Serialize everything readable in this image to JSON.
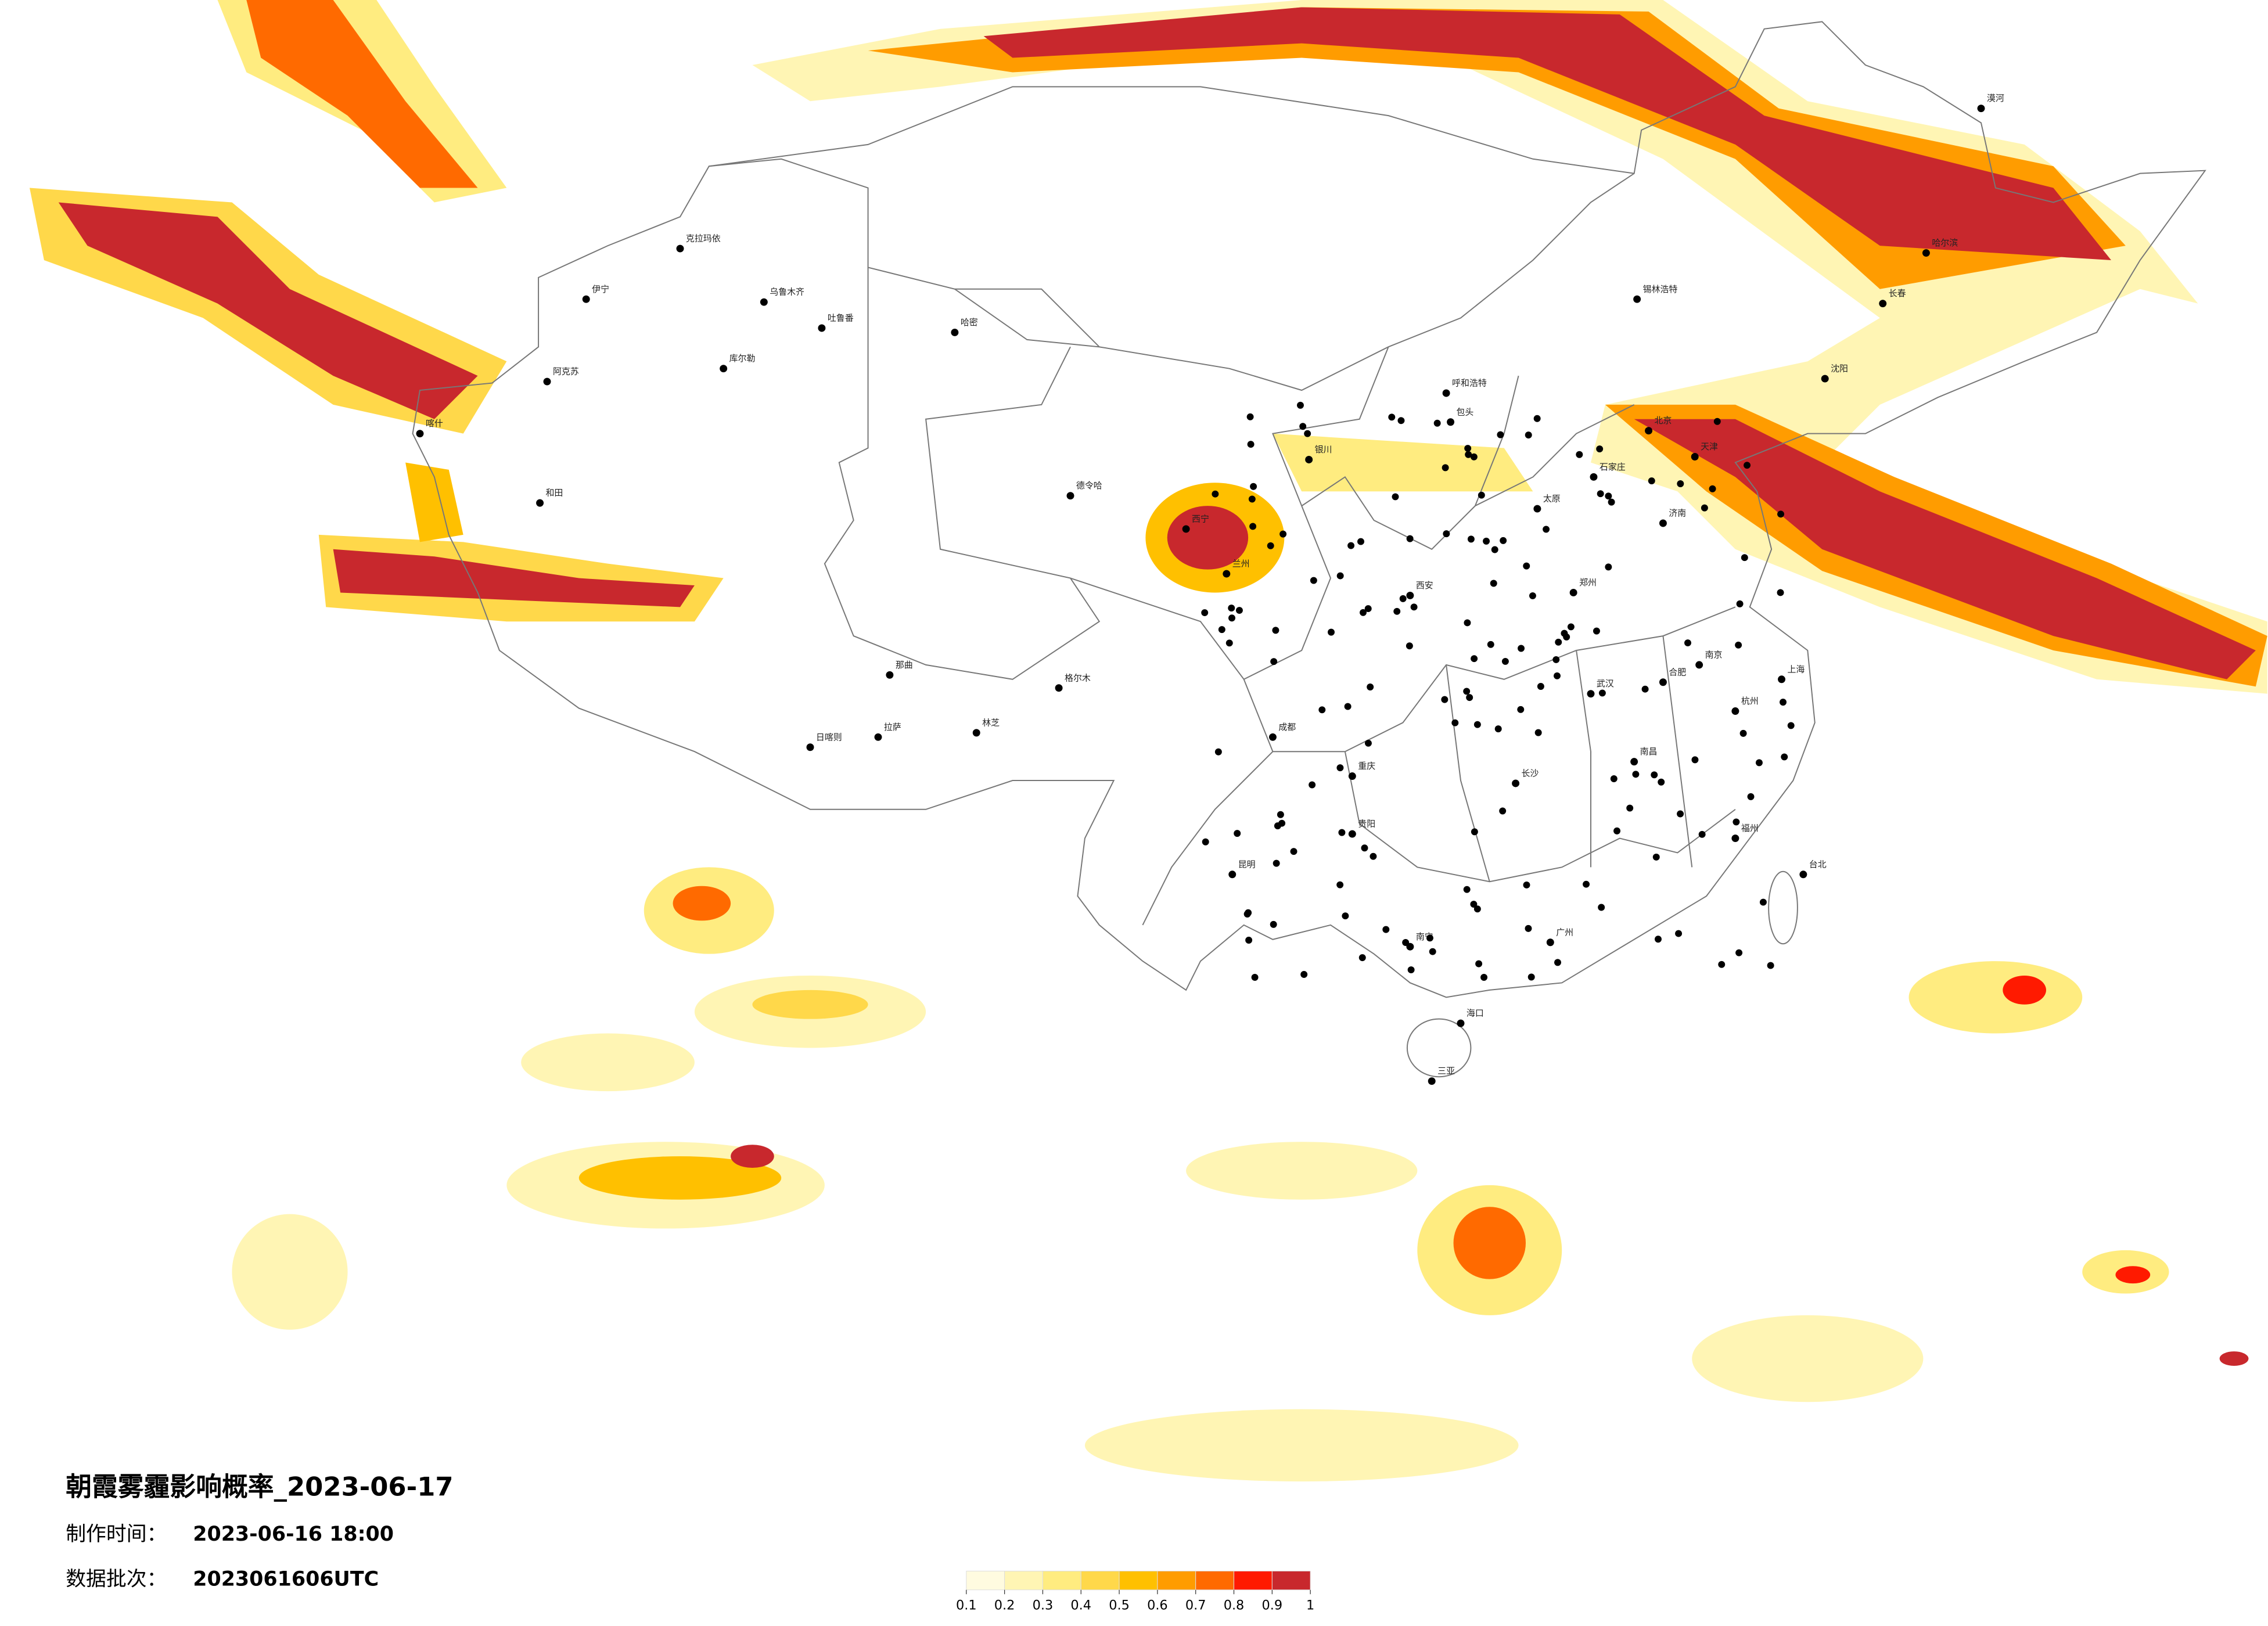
{
  "title": "朝霞雾霾影响概率_2023-06-17",
  "production_time": {
    "label": "制作时间：",
    "value": "2023-06-16 18:00"
  },
  "data_batch": {
    "label": "数据批次：",
    "value": "2023061606UTC"
  },
  "legend": {
    "colors": [
      "#fffbe0",
      "#fff5b4",
      "#ffec80",
      "#ffd84a",
      "#ffc000",
      "#ff9c00",
      "#ff6a00",
      "#ff1a00",
      "#c8282d"
    ],
    "ticks": [
      0.1,
      0.2,
      0.3,
      0.4,
      0.5,
      0.6,
      0.7,
      0.8,
      0.9,
      1
    ]
  },
  "cities": [
    "克拉玛依",
    "伊宁",
    "乌鲁木齐",
    "吐鲁番",
    "哈密",
    "库尔勒",
    "阿克苏",
    "喀什",
    "和田",
    "德令哈",
    "格尔木",
    "拉萨",
    "日喀则",
    "林芝",
    "那曲",
    "西宁",
    "兰州",
    "银川",
    "呼和浩特",
    "包头",
    "北京",
    "天津",
    "石家庄",
    "太原",
    "济南",
    "郑州",
    "西安",
    "成都",
    "重庆",
    "贵阳",
    "昆明",
    "南宁",
    "海口",
    "三亚",
    "广州",
    "长沙",
    "武汉",
    "南昌",
    "杭州",
    "上海",
    "南京",
    "合肥",
    "福州",
    "台北",
    "沈阳",
    "长春",
    "哈尔滨",
    "锡林浩特",
    "漠河"
  ]
}
